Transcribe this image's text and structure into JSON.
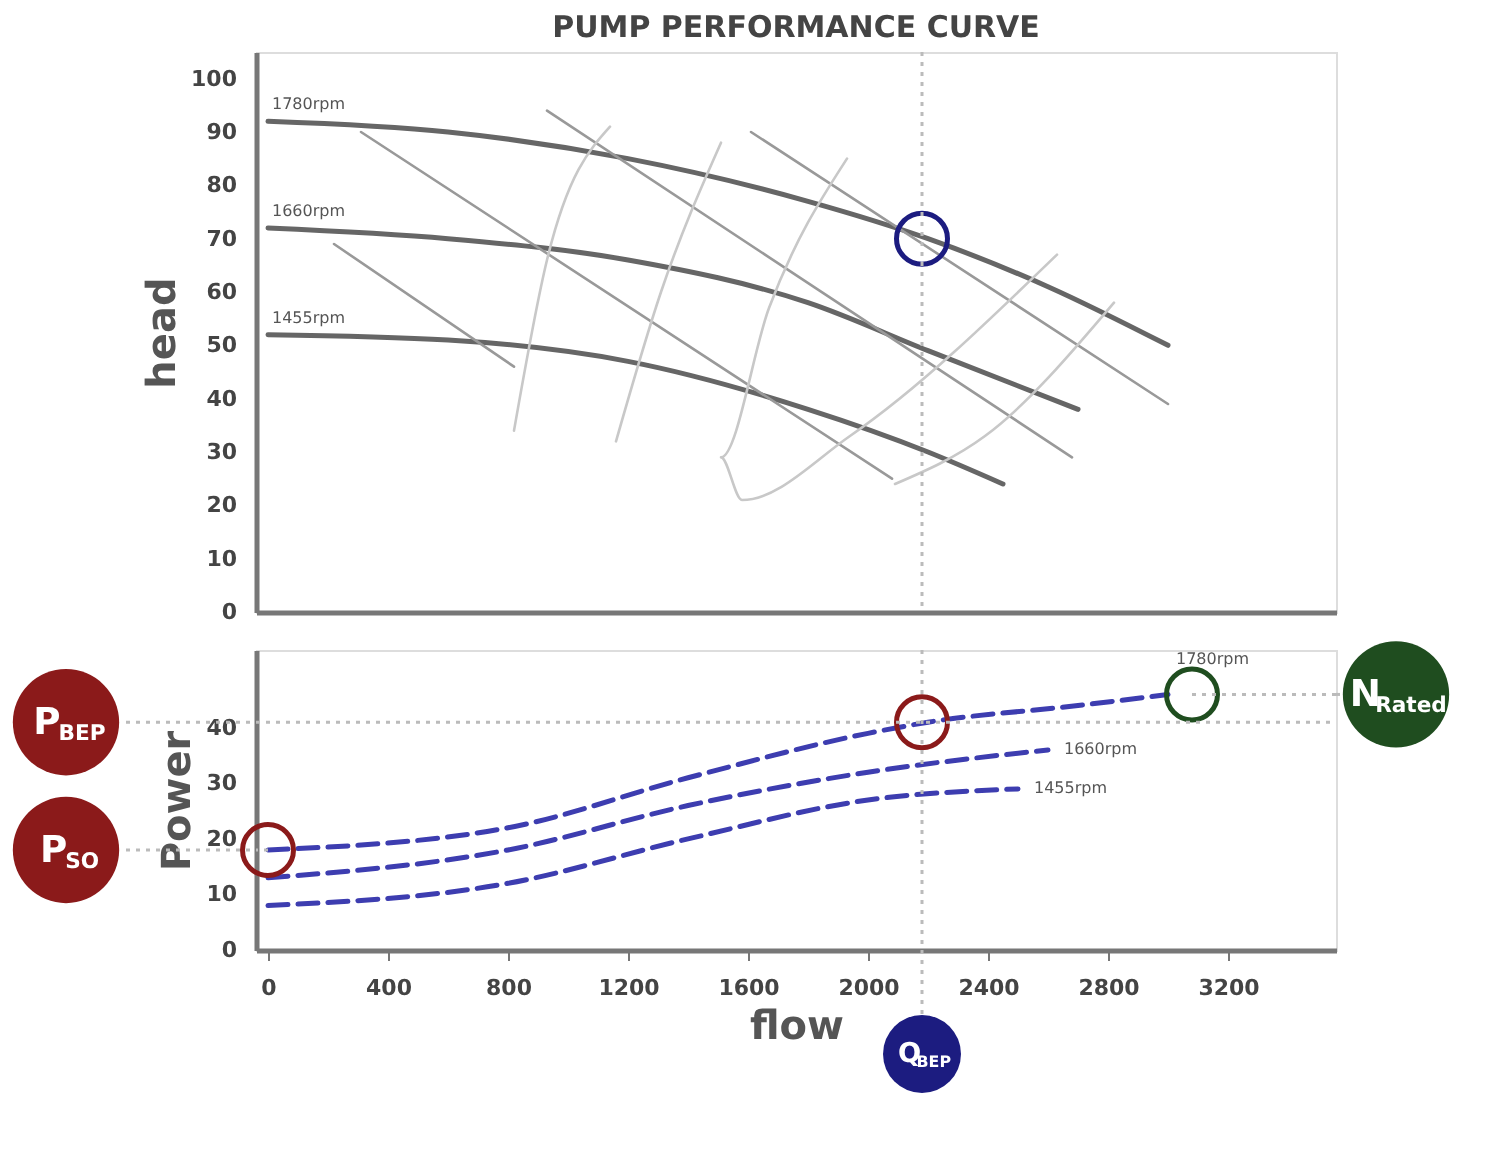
{
  "chart_data": [
    {
      "type": "line",
      "title": "PUMP PERFORMANCE CURVE",
      "ylabel": "head",
      "xlim": [
        -40,
        3560
      ],
      "ylim": [
        0,
        105
      ],
      "xticks": [
        0,
        400,
        800,
        1200,
        1600,
        2000,
        2400,
        2800,
        3200
      ],
      "yticks": [
        0,
        10,
        20,
        30,
        40,
        50,
        60,
        70,
        80,
        90,
        100
      ],
      "tick_labels": "y",
      "grid": false,
      "line_style": "solid",
      "series": [
        {
          "name": "1780rpm",
          "color": "#666666",
          "x": [
            0,
            600,
            1200,
            1800,
            2200,
            2600,
            3000
          ],
          "values": [
            92,
            90,
            85,
            77,
            70,
            61,
            50
          ]
        },
        {
          "name": "1660rpm",
          "color": "#666666",
          "x": [
            0,
            600,
            1200,
            1800,
            2200,
            2700
          ],
          "values": [
            72,
            70,
            66,
            58,
            49,
            38
          ]
        },
        {
          "name": "1455rpm",
          "color": "#666666",
          "x": [
            0,
            600,
            1200,
            1800,
            2200,
            2450
          ],
          "values": [
            52,
            51,
            47,
            38,
            30,
            24
          ]
        },
        {
          "color": "#999999",
          "x": [
            220,
            820
          ],
          "values": [
            69,
            46
          ]
        },
        {
          "color": "#999999",
          "x": [
            310,
            2080
          ],
          "values": [
            90,
            25
          ]
        },
        {
          "color": "#999999",
          "x": [
            930,
            2680
          ],
          "values": [
            94,
            29
          ]
        },
        {
          "color": "#999999",
          "x": [
            1610,
            3000
          ],
          "values": [
            90,
            39
          ]
        },
        {
          "color": "#c8c8c8",
          "x": [
            1140,
            930,
            820
          ],
          "values": [
            91,
            66,
            34
          ]
        },
        {
          "color": "#c8c8c8",
          "x": [
            1510,
            1310,
            1160
          ],
          "values": [
            88,
            60,
            32
          ]
        },
        {
          "color": "#c8c8c8",
          "x": [
            1930,
            1670,
            1510,
            1580,
            1940,
            2630
          ],
          "values": [
            85,
            57,
            29,
            21,
            33,
            67
          ]
        },
        {
          "color": "#c8c8c8",
          "x": [
            2090,
            2390,
            2820
          ],
          "values": [
            24,
            33,
            58
          ]
        },
        {
          "type": "scatter",
          "marker": "circle",
          "colors": [
            "#1c1c80"
          ],
          "x": [
            2180
          ],
          "values": [
            70
          ]
        }
      ],
      "ref_lines": [
        {
          "axis": "x",
          "value": 2180,
          "color": "#bbbbbb",
          "line_style": "dotted"
        }
      ]
    },
    {
      "type": "line",
      "xlabel": "flow",
      "ylabel": "Power",
      "xlim": [
        -40,
        3560
      ],
      "ylim": [
        0,
        54
      ],
      "xticks": [
        0,
        400,
        800,
        1200,
        1600,
        2000,
        2400,
        2800,
        3200
      ],
      "yticks": [
        0,
        10,
        20,
        30,
        40
      ],
      "grid": false,
      "line_style": "dashed",
      "series": [
        {
          "name": "1780rpm",
          "color": "#3d3db0",
          "x": [
            0,
            800,
            1400,
            2000,
            2200,
            2700,
            3000
          ],
          "values": [
            18,
            22,
            31,
            39,
            41,
            44,
            46
          ]
        },
        {
          "name": "1660rpm",
          "color": "#3d3db0",
          "x": [
            0,
            800,
            1400,
            2000,
            2600
          ],
          "values": [
            13,
            18,
            26,
            32,
            36
          ]
        },
        {
          "name": "1455rpm",
          "color": "#3d3db0",
          "x": [
            0,
            800,
            1400,
            2000,
            2500
          ],
          "values": [
            8,
            12,
            20,
            27,
            29
          ]
        },
        {
          "type": "scatter",
          "marker": "circle",
          "colors": [
            "#8b1a1a",
            "#8b1a1a",
            "#1f4d1f"
          ],
          "x": [
            2180,
            0,
            3080
          ],
          "values": [
            41,
            18,
            46
          ]
        }
      ],
      "ref_lines": [
        {
          "axis": "x",
          "value": 2180,
          "label": "Q$_{BEP}$",
          "color": "#bbbbbb",
          "line_style": "dotted"
        },
        {
          "axis": "y",
          "value": 41,
          "label": "P$_{BEP}$",
          "color": "#bbbbbb",
          "line_style": "dotted"
        }
      ],
      "annotations": [
        {
          "text": "P$_{SO}$",
          "x": 0,
          "y": 18
        },
        {
          "text": "N$_{Rated}$",
          "x": 3080,
          "y": 46
        }
      ]
    }
  ]
}
